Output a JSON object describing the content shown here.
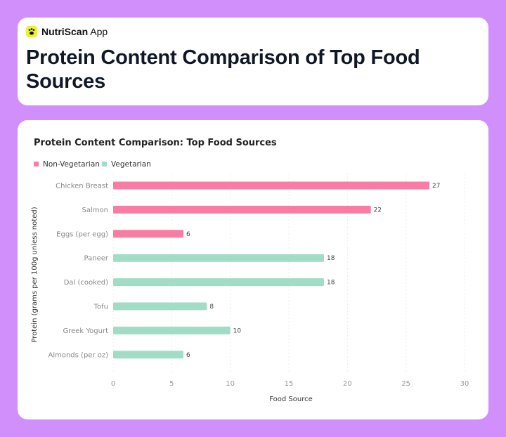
{
  "app": {
    "brand_bold": "NutriScan",
    "brand_rest": " App"
  },
  "header": {
    "title": "Protein Content Comparison of Top Food Sources"
  },
  "colors": {
    "non_veg": "#f97ca4",
    "veg": "#a0dcc6",
    "background": "#d08ffb"
  },
  "chart_data": {
    "type": "bar",
    "orientation": "horizontal",
    "title": "Protein Content Comparison: Top Food Sources",
    "xlabel": "Food Source",
    "ylabel": "Protein (grams per 100g unless noted)",
    "xlim": [
      0,
      30
    ],
    "xticks": [
      0,
      5,
      10,
      15,
      20,
      25,
      30
    ],
    "legend_position": "top-left",
    "grid": true,
    "legend": [
      {
        "name": "Non-Vegetarian",
        "color": "#f97ca4"
      },
      {
        "name": "Vegetarian",
        "color": "#a0dcc6"
      }
    ],
    "categories": [
      "Chicken Breast",
      "Salmon",
      "Eggs (per egg)",
      "Paneer",
      "Dal (cooked)",
      "Tofu",
      "Greek Yogurt",
      "Almonds (per oz)"
    ],
    "values": [
      27,
      22,
      6,
      18,
      18,
      8,
      10,
      6
    ],
    "groups": [
      "Non-Vegetarian",
      "Non-Vegetarian",
      "Non-Vegetarian",
      "Vegetarian",
      "Vegetarian",
      "Vegetarian",
      "Vegetarian",
      "Vegetarian"
    ]
  }
}
